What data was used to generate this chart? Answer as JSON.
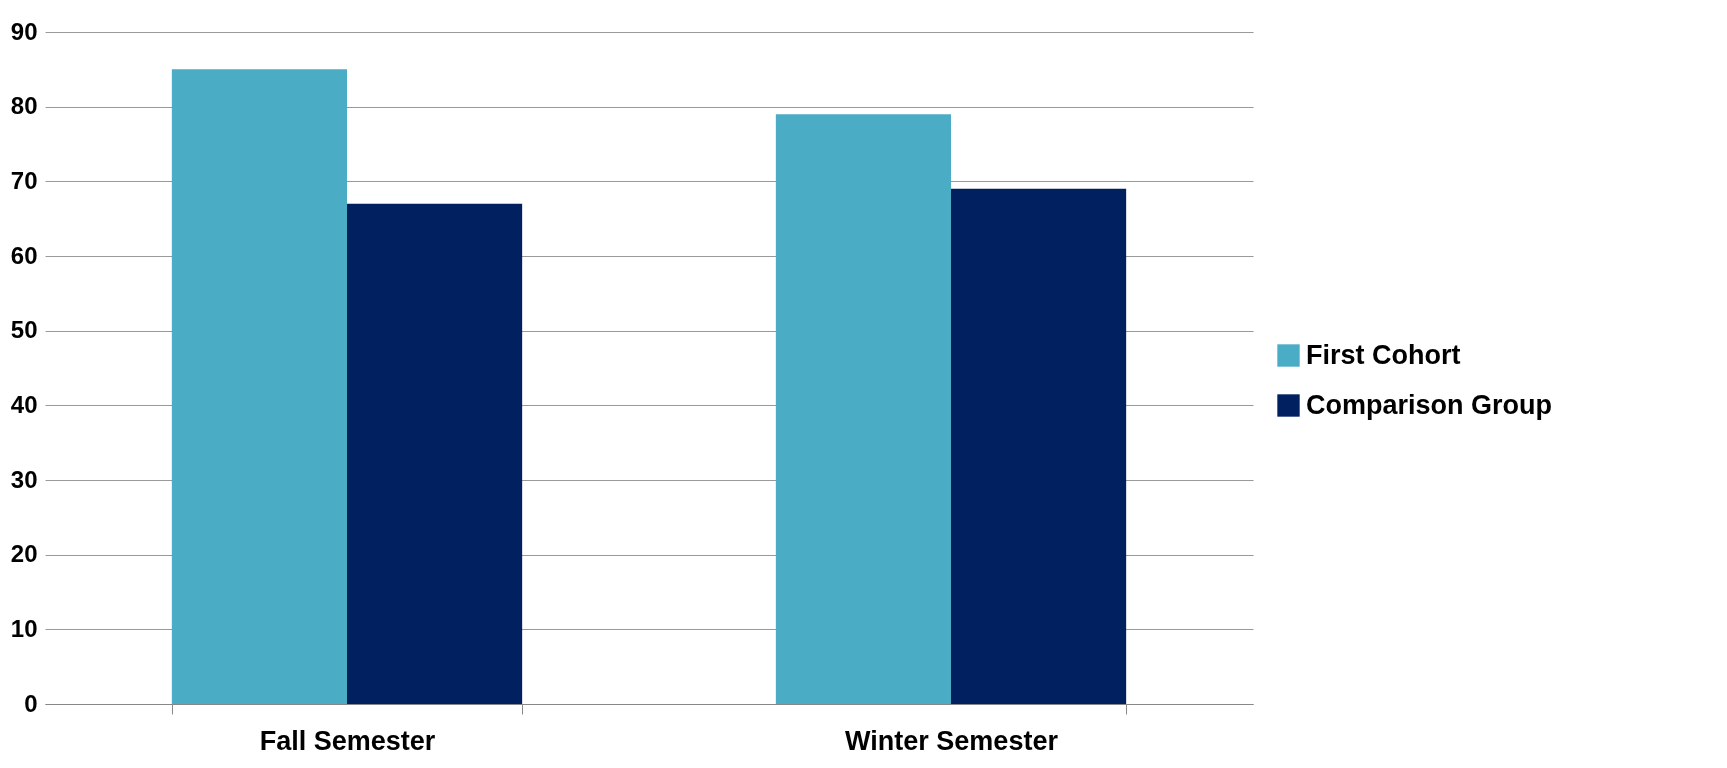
{
  "chart_data": {
    "type": "bar",
    "categories": [
      "Fall Semester",
      "Winter Semester"
    ],
    "series": [
      {
        "name": "First Cohort",
        "color": "#4bacc6",
        "values": [
          85,
          79
        ]
      },
      {
        "name": "Comparison Group",
        "color": "#002060",
        "values": [
          67,
          69
        ]
      }
    ],
    "ylim": [
      0,
      90
    ],
    "yticks": [
      0,
      10,
      20,
      30,
      40,
      50,
      60,
      70,
      80,
      90
    ],
    "grid": "y",
    "legend": "right"
  }
}
